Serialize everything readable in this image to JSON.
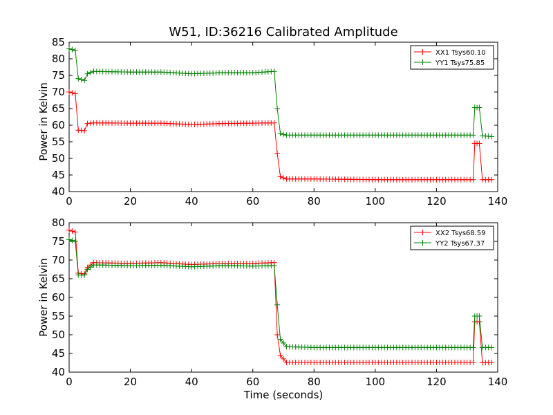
{
  "chart_data": [
    {
      "type": "line",
      "title": "W51, ID:36216 Calibrated Amplitude",
      "xlabel": "",
      "ylabel": "Power in Kelvin",
      "xlim": [
        0,
        140
      ],
      "ylim": [
        40,
        85
      ],
      "xticks": [
        0,
        20,
        40,
        60,
        80,
        100,
        120,
        140
      ],
      "yticks": [
        40,
        45,
        50,
        55,
        60,
        65,
        70,
        75,
        80,
        85
      ],
      "legend_position": "top-right",
      "series": [
        {
          "name": "XX1 Tsys60.10",
          "color": "#ff0000",
          "segments": [
            [
              0,
              70
            ],
            [
              2,
              69.5
            ],
            [
              3,
              58.5
            ],
            [
              5,
              58.3
            ],
            [
              6,
              60.5
            ],
            [
              8,
              60.7
            ],
            [
              20,
              60.6
            ],
            [
              30,
              60.6
            ],
            [
              40,
              60.2
            ],
            [
              50,
              60.5
            ],
            [
              60,
              60.6
            ],
            [
              67,
              60.7
            ],
            [
              68,
              51.5
            ],
            [
              69,
              44.5
            ],
            [
              71,
              43.8
            ],
            [
              80,
              43.8
            ],
            [
              100,
              43.6
            ],
            [
              120,
              43.6
            ],
            [
              132,
              43.6
            ],
            [
              132.5,
              54.5
            ],
            [
              134,
              54.5
            ],
            [
              135,
              43.6
            ],
            [
              138,
              43.6
            ]
          ]
        },
        {
          "name": "YY1 Tsys75.85",
          "color": "#008000",
          "segments": [
            [
              0,
              83
            ],
            [
              2,
              82.5
            ],
            [
              3,
              74
            ],
            [
              5,
              73.5
            ],
            [
              6,
              75.5
            ],
            [
              8,
              76.2
            ],
            [
              20,
              76
            ],
            [
              30,
              76
            ],
            [
              40,
              75.5
            ],
            [
              50,
              75.8
            ],
            [
              60,
              75.8
            ],
            [
              67,
              76.2
            ],
            [
              68,
              65
            ],
            [
              69,
              57.5
            ],
            [
              71,
              57
            ],
            [
              80,
              57
            ],
            [
              100,
              57
            ],
            [
              120,
              57
            ],
            [
              132,
              57
            ],
            [
              132.5,
              65.3
            ],
            [
              134,
              65.3
            ],
            [
              135,
              56.8
            ],
            [
              138,
              56.6
            ]
          ]
        }
      ]
    },
    {
      "type": "line",
      "title": "",
      "xlabel": "Time (seconds)",
      "ylabel": "Power in Kelvin",
      "xlim": [
        0,
        140
      ],
      "ylim": [
        40,
        80
      ],
      "xticks": [
        0,
        20,
        40,
        60,
        80,
        100,
        120,
        140
      ],
      "yticks": [
        40,
        45,
        50,
        55,
        60,
        65,
        70,
        75,
        80
      ],
      "legend_position": "top-right",
      "series": [
        {
          "name": "XX2 Tsys68.59",
          "color": "#ff0000",
          "segments": [
            [
              0,
              78
            ],
            [
              2,
              77.5
            ],
            [
              3,
              66.5
            ],
            [
              5,
              66.3
            ],
            [
              6,
              68
            ],
            [
              8,
              69.3
            ],
            [
              20,
              69.1
            ],
            [
              30,
              69.3
            ],
            [
              40,
              68.8
            ],
            [
              50,
              69.1
            ],
            [
              60,
              69.1
            ],
            [
              67,
              69.3
            ],
            [
              68,
              50
            ],
            [
              69,
              44.5
            ],
            [
              71,
              42.6
            ],
            [
              80,
              42.6
            ],
            [
              100,
              42.6
            ],
            [
              120,
              42.6
            ],
            [
              132,
              42.6
            ],
            [
              132.5,
              53.5
            ],
            [
              134,
              53.5
            ],
            [
              135,
              42.5
            ],
            [
              138,
              42.6
            ]
          ]
        },
        {
          "name": "YY2 Tsys67.37",
          "color": "#008000",
          "segments": [
            [
              0,
              75.5
            ],
            [
              2,
              75
            ],
            [
              3,
              66
            ],
            [
              5,
              66
            ],
            [
              6,
              67.5
            ],
            [
              8,
              68.7
            ],
            [
              20,
              68.5
            ],
            [
              30,
              68.6
            ],
            [
              40,
              68.2
            ],
            [
              50,
              68.5
            ],
            [
              60,
              68.4
            ],
            [
              67,
              68.5
            ],
            [
              68,
              58
            ],
            [
              69,
              48.8
            ],
            [
              71,
              46.8
            ],
            [
              80,
              46.6
            ],
            [
              100,
              46.6
            ],
            [
              120,
              46.6
            ],
            [
              132,
              46.6
            ],
            [
              132.5,
              55
            ],
            [
              134,
              55
            ],
            [
              135,
              46.6
            ],
            [
              138,
              46.6
            ]
          ]
        }
      ]
    }
  ]
}
